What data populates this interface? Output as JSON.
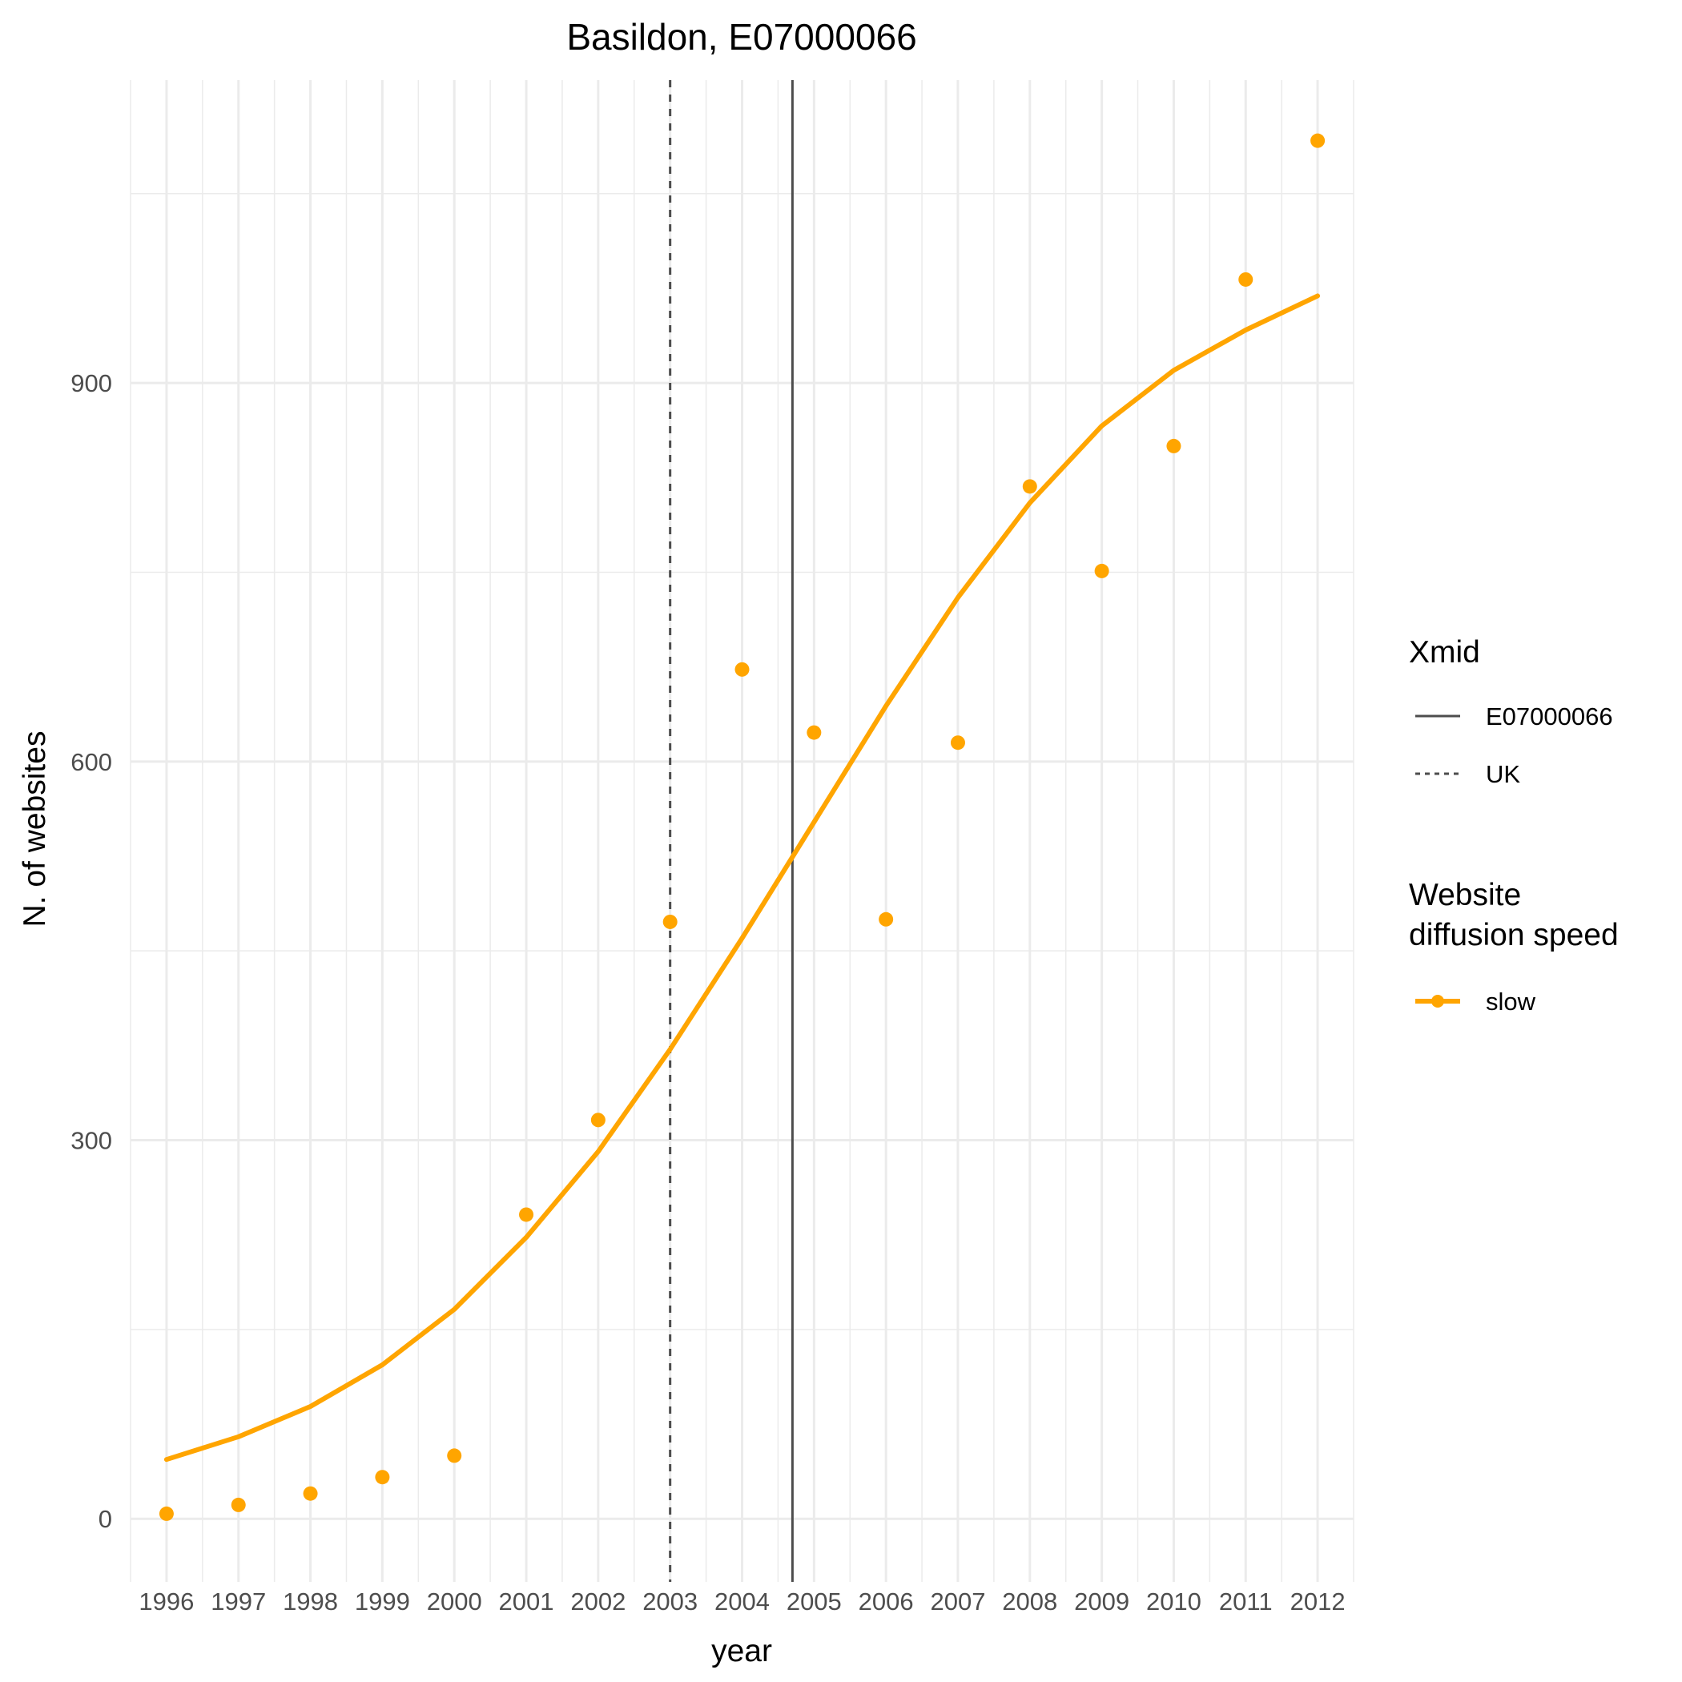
{
  "chart_data": {
    "type": "line",
    "title": "Basildon, E07000066",
    "xlabel": "year",
    "ylabel": "N. of websites",
    "x": [
      1996,
      1997,
      1998,
      1999,
      2000,
      2001,
      2002,
      2003,
      2004,
      2005,
      2006,
      2007,
      2008,
      2009,
      2010,
      2011,
      2012
    ],
    "x_tick_labels": [
      "1996",
      "1997",
      "1998",
      "1999",
      "2000",
      "2001",
      "2002",
      "2003",
      "2004",
      "2005",
      "2006",
      "2007",
      "2008",
      "2009",
      "2010",
      "2011",
      "2012"
    ],
    "y_ticks": [
      0,
      300,
      600,
      900
    ],
    "y_tick_labels": [
      "0",
      "300",
      "600",
      "900"
    ],
    "xlim": [
      1995.5,
      2012.5
    ],
    "ylim": [
      -50,
      1140
    ],
    "grid": true,
    "series": [
      {
        "name": "slow",
        "color": "#FFA500",
        "points": [
          4,
          11,
          20,
          33,
          50,
          241,
          316,
          473,
          673,
          623,
          475,
          615,
          818,
          751,
          850,
          982,
          1092
        ],
        "fit": [
          47,
          65,
          89,
          122,
          166,
          223,
          291,
          372,
          460,
          552,
          644,
          730,
          805,
          866,
          910,
          942,
          969
        ]
      }
    ],
    "vlines": [
      {
        "name": "E07000066",
        "x": 2004.7,
        "style": "solid",
        "color": "#4d4d4d"
      },
      {
        "name": "UK",
        "x": 2003.0,
        "style": "dashed",
        "color": "#4d4d4d"
      }
    ],
    "legend": {
      "placement": "right",
      "xmid_title": "Xmid",
      "xmid_items": [
        "E07000066",
        "UK"
      ],
      "speed_title_line1": "Website",
      "speed_title_line2": "diffusion speed",
      "speed_items": [
        "slow"
      ]
    }
  }
}
